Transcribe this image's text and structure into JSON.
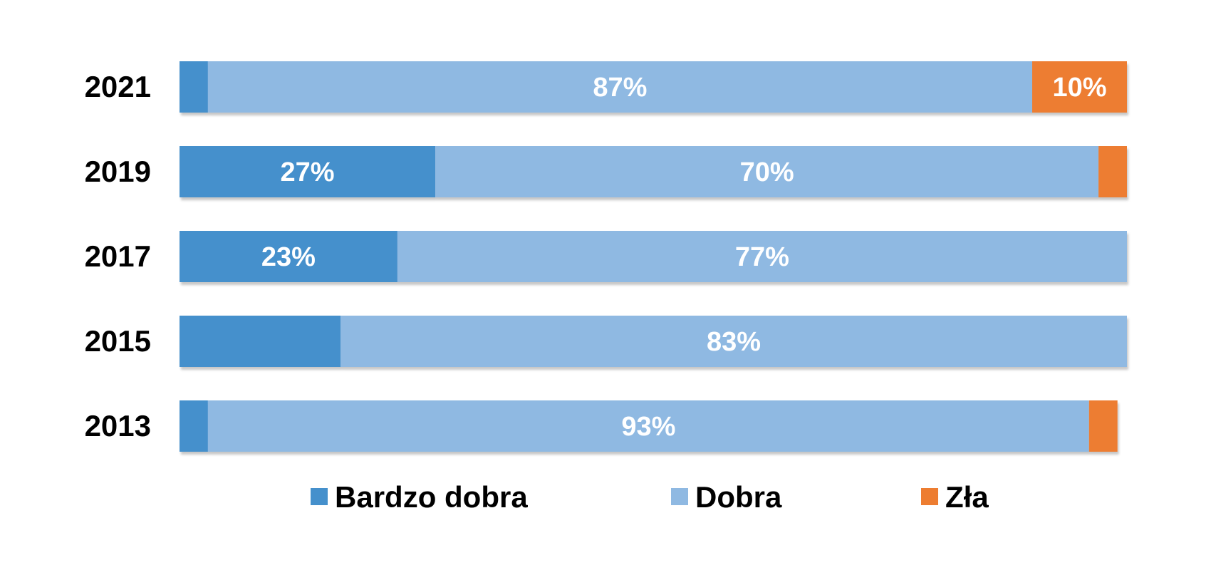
{
  "chart_data": {
    "type": "bar",
    "orientation": "horizontal",
    "stacked": true,
    "categories": [
      "2021",
      "2019",
      "2017",
      "2015",
      "2013"
    ],
    "series": [
      {
        "name": "Bardzo dobra",
        "color": "#4590CC",
        "values": [
          3,
          27,
          23,
          17,
          3
        ],
        "labels": [
          "",
          "27%",
          "23%",
          "",
          ""
        ]
      },
      {
        "name": "Dobra",
        "color": "#8FB9E2",
        "values": [
          87,
          70,
          77,
          83,
          93
        ],
        "labels": [
          "87%",
          "70%",
          "77%",
          "83%",
          "93%"
        ]
      },
      {
        "name": "Zła",
        "color": "#ED7D31",
        "values": [
          10,
          3,
          0,
          0,
          3
        ],
        "labels": [
          "10%",
          "",
          "",
          "",
          ""
        ]
      }
    ],
    "xlim": [
      0,
      100
    ],
    "grid": false,
    "legend_position": "bottom"
  }
}
